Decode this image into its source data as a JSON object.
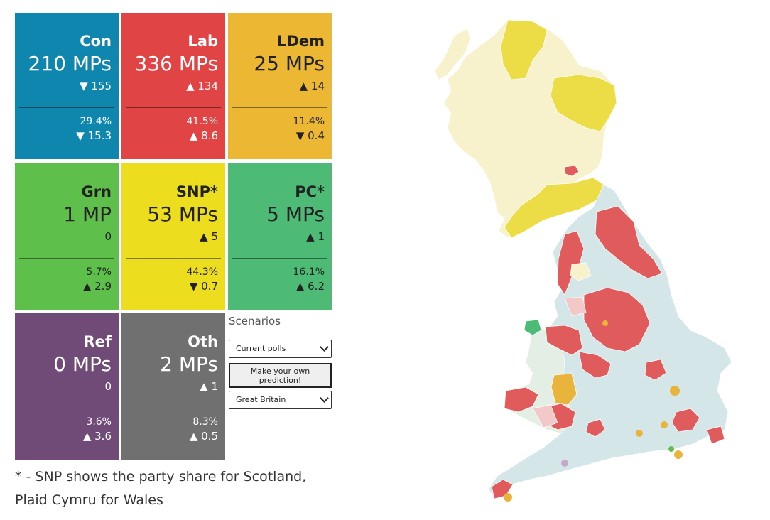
{
  "parties": [
    {
      "id": "con",
      "name": "Con",
      "mps": "210 MPs",
      "change": "▼ 155",
      "share": "29.4%",
      "share_change": "▼ 15.3",
      "color": "#0e86ad",
      "text": "light"
    },
    {
      "id": "lab",
      "name": "Lab",
      "mps": "336 MPs",
      "change": "▲ 134",
      "share": "41.5%",
      "share_change": "▲ 8.6",
      "color": "#e04444",
      "text": "light"
    },
    {
      "id": "ldem",
      "name": "LDem",
      "mps": "25 MPs",
      "change": "▲ 14",
      "share": "11.4%",
      "share_change": "▼ 0.4",
      "color": "#ecb733",
      "text": "dark"
    },
    {
      "id": "grn",
      "name": "Grn",
      "mps": "1 MP",
      "change": "0",
      "share": "5.7%",
      "share_change": "▲ 2.9",
      "color": "#5fbf4b",
      "text": "dark"
    },
    {
      "id": "snp",
      "name": "SNP*",
      "mps": "53 MPs",
      "change": "▲ 5",
      "share": "44.3%",
      "share_change": "▼ 0.7",
      "color": "#ecdd1f",
      "text": "dark"
    },
    {
      "id": "pc",
      "name": "PC*",
      "mps": "5 MPs",
      "change": "▲ 1",
      "share": "16.1%",
      "share_change": "▲ 6.2",
      "color": "#4dbb76",
      "text": "dark"
    },
    {
      "id": "ref",
      "name": "Ref",
      "mps": "0 MPs",
      "change": "0",
      "share": "3.6%",
      "share_change": "▲ 3.6",
      "color": "#704b77",
      "text": "light"
    },
    {
      "id": "oth",
      "name": "Oth",
      "mps": "2 MPs",
      "change": "▲ 1",
      "share": "8.3%",
      "share_change": "▲ 0.5",
      "color": "#707070",
      "text": "light"
    }
  ],
  "scenarios": {
    "title": "Scenarios",
    "poll_select": "Current polls",
    "predict_button": "Make your own prediction!",
    "region_select": "Great Britain"
  },
  "footnote_line1": "* - SNP shows the party share for Scotland,",
  "footnote_line2": "Plaid Cymru for Wales",
  "map": {
    "colors": {
      "con": "#d5e6e9",
      "lab": "#e05b5b",
      "lab_light": "#f3c8c8",
      "snp": "#ecdd47",
      "snp_light": "#f8f2cc",
      "ldem": "#e8b43c",
      "pc": "#4dbb76",
      "pc_light": "#e3efe4",
      "grn": "#5fbf4b",
      "ref": "#c8a8c8"
    }
  }
}
